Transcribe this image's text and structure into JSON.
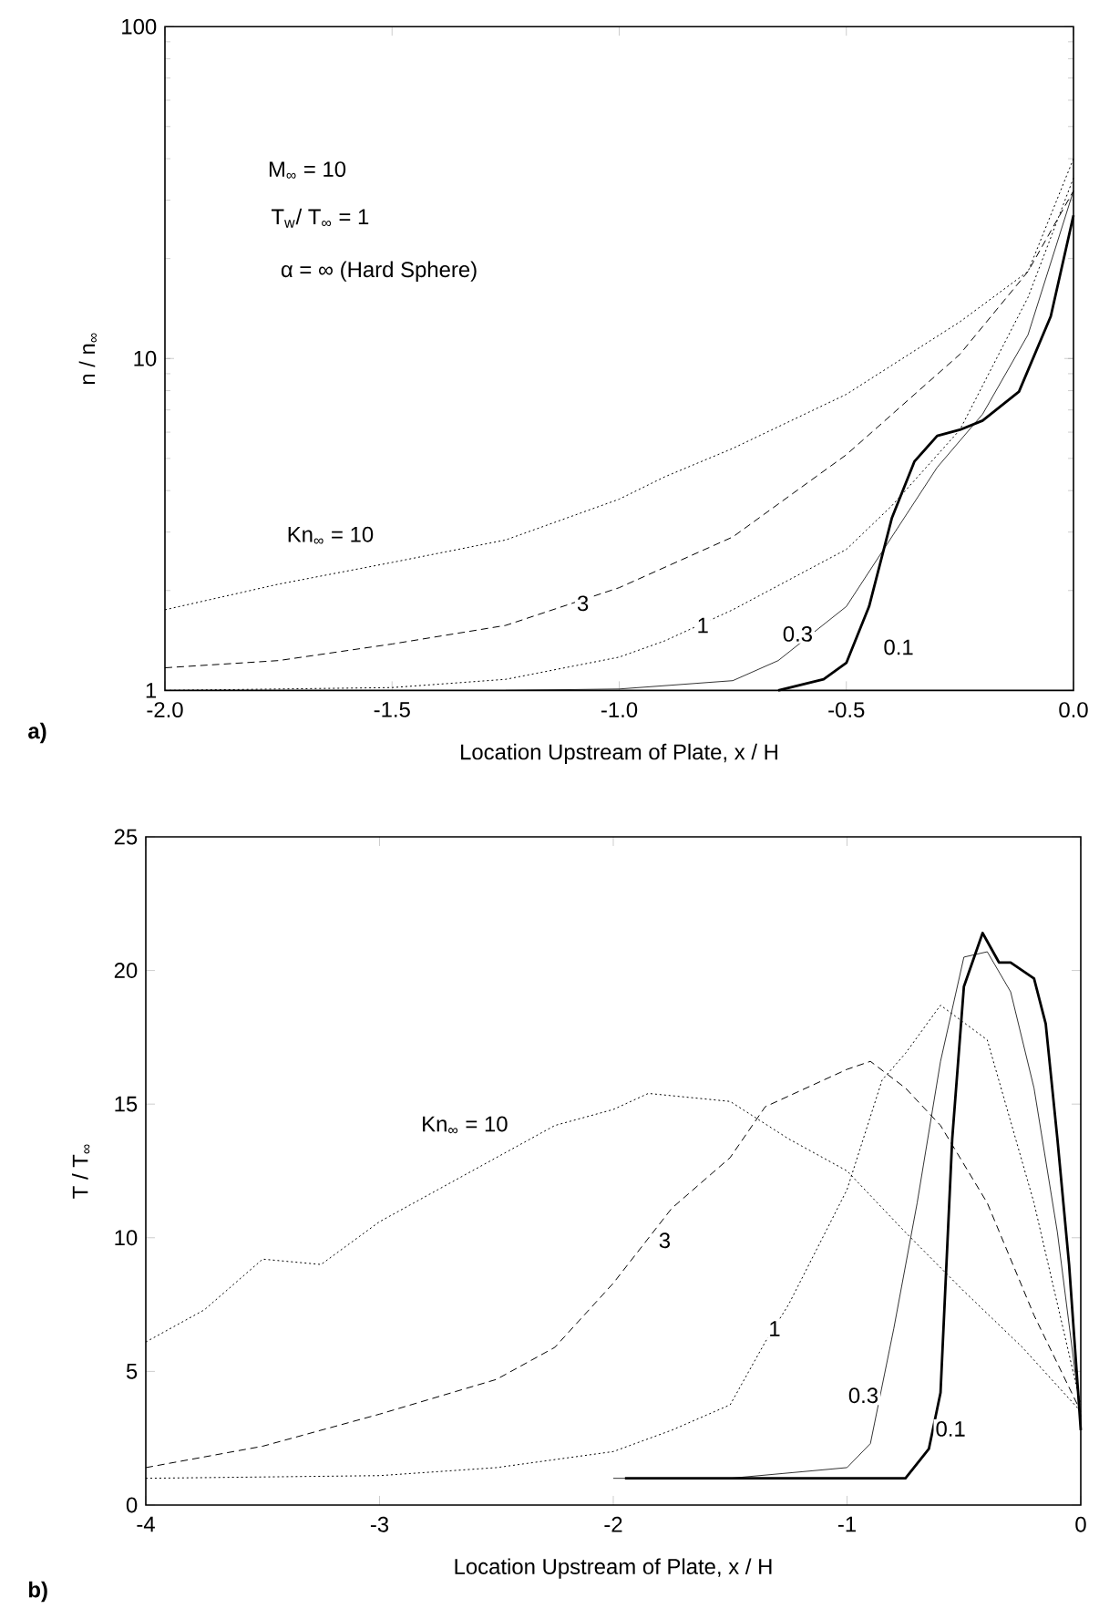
{
  "chart_data": [
    {
      "type": "line",
      "xlabel": "Location Upstream of Plate, x / H",
      "ylabel": "n / n$_{∞}$",
      "log": "y",
      "xlim": [
        -2,
        0
      ],
      "ylim": [
        1,
        100
      ],
      "xticks": [
        {
          "value": -2,
          "label": "-2.0"
        },
        {
          "value": -1.5,
          "label": "-1.5"
        },
        {
          "value": -1,
          "label": "-1.0"
        },
        {
          "value": -0.5,
          "label": "-0.5"
        },
        {
          "value": 0,
          "label": "0.0"
        }
      ],
      "yticks": [
        1,
        10,
        100
      ],
      "annotations": [
        "a)",
        "M$_{∞}$ = 10",
        "T$_{w}$/ T$_{∞}$ = 1",
        "α = ∞  (Hard Sphere)"
      ],
      "series": [
        {
          "name": "Kn$_{∞}$ = 10",
          "color": "#000000",
          "line_style": "dotted",
          "x": [
            -2,
            -1.75,
            -1.5,
            -1.25,
            -1,
            -0.9,
            -0.75,
            -0.5,
            -0.25,
            -0.1,
            0
          ],
          "values": [
            1.75,
            2.09,
            2.43,
            2.84,
            3.77,
            4.4,
            5.36,
            7.8,
            12.9,
            18.3,
            40
          ]
        },
        {
          "name": "3",
          "color": "#000000",
          "line_style": "dashed",
          "x": [
            -2,
            -1.75,
            -1.5,
            -1.25,
            -1,
            -0.75,
            -0.5,
            -0.25,
            -0.1,
            0
          ],
          "values": [
            1.17,
            1.23,
            1.38,
            1.57,
            2.04,
            2.9,
            5.13,
            10.3,
            18.3,
            32
          ]
        },
        {
          "name": "1",
          "color": "#000000",
          "line_style": "dotted",
          "x": [
            -2,
            -1.5,
            -1.25,
            -1,
            -0.9,
            -0.75,
            -0.5,
            -0.4,
            -0.25,
            -0.1,
            0
          ],
          "values": [
            1,
            1.02,
            1.08,
            1.26,
            1.41,
            1.75,
            2.66,
            3.6,
            6.1,
            15.3,
            35
          ]
        },
        {
          "name": "0.3",
          "color": "#000000",
          "line_style": "solid",
          "x": [
            -1.25,
            -1,
            -0.75,
            -0.65,
            -0.5,
            -0.4,
            -0.3,
            -0.2,
            -0.1,
            0
          ],
          "values": [
            1,
            1.01,
            1.07,
            1.23,
            1.79,
            2.9,
            4.7,
            6.8,
            11.8,
            32
          ]
        },
        {
          "name": "0.1",
          "color": "#000000",
          "line_style": "solid",
          "x": [
            -0.65,
            -0.55,
            -0.5,
            -0.45,
            -0.4,
            -0.35,
            -0.3,
            -0.25,
            -0.2,
            -0.12,
            -0.05,
            0
          ],
          "values": [
            1,
            1.08,
            1.21,
            1.79,
            3.3,
            4.9,
            5.85,
            6.1,
            6.5,
            7.95,
            13.4,
            27
          ]
        }
      ]
    },
    {
      "type": "line",
      "xlabel": "Location Upstream of Plate, x / H",
      "ylabel": "T / T$_{∞}$",
      "xlim": [
        -4,
        0
      ],
      "ylim": [
        0,
        25
      ],
      "xticks": [
        -4,
        -3,
        -2,
        -1,
        0
      ],
      "yticks": [
        0,
        5,
        10,
        15,
        20,
        25
      ],
      "annotations": [
        "b)"
      ],
      "series": [
        {
          "name": "Kn$_{∞}$ = 10",
          "color": "#000000",
          "line_style": "dotted",
          "x": [
            -4,
            -3.75,
            -3.5,
            -3.25,
            -3,
            -2.75,
            -2.5,
            -2.25,
            -2,
            -1.85,
            -1.5,
            -1.25,
            -1,
            -0.75,
            -0.5,
            -0.25,
            0
          ],
          "values": [
            6.1,
            7.3,
            9.2,
            9.0,
            10.6,
            11.8,
            13.0,
            14.2,
            14.8,
            15.4,
            15.1,
            13.7,
            12.5,
            10.2,
            8.0,
            5.9,
            3.5
          ]
        },
        {
          "name": "3",
          "color": "#000000",
          "line_style": "dashed",
          "x": [
            -4,
            -3.5,
            -3,
            -2.5,
            -2.25,
            -2,
            -1.75,
            -1.5,
            -1.35,
            -1,
            -0.9,
            -0.75,
            -0.6,
            -0.4,
            -0.2,
            0
          ],
          "values": [
            1.4,
            2.2,
            3.4,
            4.7,
            5.9,
            8.3,
            11.1,
            13.0,
            14.9,
            16.3,
            16.6,
            15.6,
            14.2,
            11.3,
            7.1,
            3.5
          ]
        },
        {
          "name": "1",
          "color": "#000000",
          "line_style": "dotted",
          "x": [
            -4,
            -3,
            -2.5,
            -2,
            -1.75,
            -1.5,
            -1.35,
            -1.25,
            -1,
            -0.85,
            -0.75,
            -0.6,
            -0.4,
            -0.2,
            0
          ],
          "values": [
            1.0,
            1.1,
            1.4,
            2.0,
            2.8,
            3.75,
            6.1,
            7.5,
            11.8,
            15.9,
            16.9,
            18.7,
            17.4,
            11.3,
            3.75
          ]
        },
        {
          "name": "0.3",
          "color": "#000000",
          "line_style": "solid",
          "x": [
            -2,
            -1.5,
            -1,
            -0.9,
            -0.8,
            -0.7,
            -0.6,
            -0.5,
            -0.4,
            -0.3,
            -0.2,
            -0.1,
            0
          ],
          "values": [
            1.0,
            1.0,
            1.4,
            2.3,
            6.6,
            11.3,
            16.6,
            20.5,
            20.7,
            19.2,
            15.6,
            10.2,
            3.3
          ]
        },
        {
          "name": "0.1",
          "color": "#000000",
          "line_style": "solid",
          "x": [
            -1.95,
            -1,
            -0.75,
            -0.65,
            -0.6,
            -0.55,
            -0.5,
            -0.42,
            -0.35,
            -0.3,
            -0.2,
            -0.15,
            -0.1,
            -0.05,
            0
          ],
          "values": [
            1.0,
            1.0,
            1.0,
            2.1,
            4.2,
            13.7,
            19.4,
            21.4,
            20.3,
            20.3,
            19.7,
            18.0,
            13.7,
            9.0,
            2.8
          ]
        }
      ]
    }
  ]
}
